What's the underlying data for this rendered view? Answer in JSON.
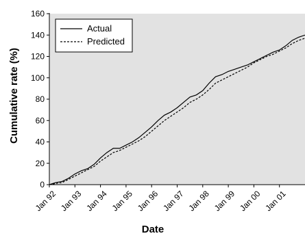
{
  "chart_data": {
    "type": "line",
    "title": "",
    "xlabel": "Date",
    "ylabel": "Cumulative rate (%)",
    "ylim": [
      0,
      160
    ],
    "yticks": [
      0,
      20,
      40,
      60,
      80,
      100,
      120,
      140,
      160
    ],
    "xticks": [
      "Jan 92",
      "Jan 93",
      "Jan 94",
      "Jan 95",
      "Jan 96",
      "Jan 97",
      "Jan 98",
      "Jan 99",
      "Jan 00",
      "Jan 01"
    ],
    "xlim": [
      "1992-01",
      "2002-01"
    ],
    "grid": false,
    "background": "#e2e2e2",
    "legend_position": "top-left",
    "series": [
      {
        "name": "Actual",
        "style": "solid",
        "color": "#000000",
        "x": [
          "1992-01",
          "1992-04",
          "1992-07",
          "1992-10",
          "1993-01",
          "1993-04",
          "1993-07",
          "1993-10",
          "1994-01",
          "1994-04",
          "1994-07",
          "1994-10",
          "1995-01",
          "1995-04",
          "1995-07",
          "1995-10",
          "1996-01",
          "1996-04",
          "1996-07",
          "1996-10",
          "1997-01",
          "1997-04",
          "1997-07",
          "1997-10",
          "1998-01",
          "1998-04",
          "1998-07",
          "1998-10",
          "1999-01",
          "1999-04",
          "1999-07",
          "1999-10",
          "2000-01",
          "2000-04",
          "2000-07",
          "2000-10",
          "2001-01",
          "2001-04",
          "2001-07",
          "2001-10",
          "2002-01"
        ],
        "values": [
          0,
          2,
          3,
          6,
          10,
          13,
          15,
          19,
          25,
          30,
          34,
          34,
          37,
          40,
          44,
          49,
          54,
          60,
          65,
          68,
          72,
          77,
          82,
          84,
          88,
          95,
          101,
          103,
          106,
          108,
          110,
          112,
          115,
          118,
          121,
          124,
          126,
          130,
          135,
          138,
          140
        ]
      },
      {
        "name": "Predicted",
        "style": "dashed",
        "color": "#000000",
        "x": [
          "1992-01",
          "1992-04",
          "1992-07",
          "1992-10",
          "1993-01",
          "1993-04",
          "1993-07",
          "1993-10",
          "1994-01",
          "1994-04",
          "1994-07",
          "1994-10",
          "1995-01",
          "1995-04",
          "1995-07",
          "1995-10",
          "1996-01",
          "1996-04",
          "1996-07",
          "1996-10",
          "1997-01",
          "1997-04",
          "1997-07",
          "1997-10",
          "1998-01",
          "1998-04",
          "1998-07",
          "1998-10",
          "1999-01",
          "1999-04",
          "1999-07",
          "1999-10",
          "2000-01",
          "2000-04",
          "2000-07",
          "2000-10",
          "2001-01",
          "2001-04",
          "2001-07",
          "2001-10",
          "2002-01"
        ],
        "values": [
          0,
          1,
          2,
          5,
          8,
          11,
          14,
          17,
          22,
          26,
          30,
          32,
          35,
          38,
          41,
          45,
          50,
          55,
          60,
          64,
          68,
          72,
          77,
          80,
          84,
          89,
          95,
          98,
          101,
          104,
          107,
          110,
          114,
          117,
          120,
          122,
          125,
          128,
          132,
          135,
          137
        ]
      }
    ]
  }
}
